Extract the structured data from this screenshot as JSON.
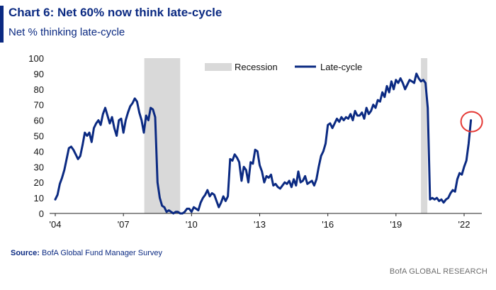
{
  "header": {
    "title": "Chart 6: Net 60% now think late-cycle",
    "subtitle": "Net % thinking late-cycle"
  },
  "footer": {
    "source_label": "Source:",
    "source_text": " BofA Global Fund Manager Survey",
    "brand": "BofA GLOBAL RESEARCH"
  },
  "colors": {
    "line": "#0b2a82",
    "recession": "#d9d9d9",
    "highlight_circle": "#e53935"
  },
  "chart_data": {
    "type": "line",
    "title": "Chart 6: Net 60% now think late-cycle",
    "subtitle": "Net % thinking late-cycle",
    "ylim": [
      0,
      100
    ],
    "yticks": [
      0,
      10,
      20,
      30,
      40,
      50,
      60,
      70,
      80,
      90,
      100
    ],
    "xlim": [
      2004,
      2023.2
    ],
    "xticks": [
      {
        "value": 2004,
        "label": "'04"
      },
      {
        "value": 2007,
        "label": "'07"
      },
      {
        "value": 2010,
        "label": "'10"
      },
      {
        "value": 2013,
        "label": "'13"
      },
      {
        "value": 2016,
        "label": "'16"
      },
      {
        "value": 2019,
        "label": "'19"
      },
      {
        "value": 2022,
        "label": "'22"
      }
    ],
    "legend": {
      "position": "top",
      "recession_label": "Recession",
      "line_label": "Late-cycle"
    },
    "recessions": [
      {
        "start": 2007.92,
        "end": 2009.5
      },
      {
        "start": 2020.1,
        "end": 2020.38
      }
    ],
    "annotation": {
      "type": "circle",
      "x": 2022.3,
      "y": 60
    },
    "series": [
      {
        "name": "Late-cycle",
        "x": [
          2004.0,
          2004.1,
          2004.2,
          2004.3,
          2004.4,
          2004.5,
          2004.6,
          2004.7,
          2004.8,
          2004.9,
          2005.0,
          2005.1,
          2005.2,
          2005.3,
          2005.4,
          2005.5,
          2005.6,
          2005.7,
          2005.8,
          2005.9,
          2006.0,
          2006.1,
          2006.2,
          2006.3,
          2006.4,
          2006.5,
          2006.6,
          2006.7,
          2006.8,
          2006.9,
          2007.0,
          2007.1,
          2007.2,
          2007.3,
          2007.4,
          2007.5,
          2007.6,
          2007.7,
          2007.8,
          2007.9,
          2008.0,
          2008.1,
          2008.2,
          2008.3,
          2008.4,
          2008.5,
          2008.6,
          2008.7,
          2008.8,
          2008.9,
          2009.0,
          2009.1,
          2009.2,
          2009.3,
          2009.4,
          2009.5,
          2009.6,
          2009.7,
          2009.8,
          2009.9,
          2010.0,
          2010.1,
          2010.2,
          2010.3,
          2010.4,
          2010.5,
          2010.6,
          2010.7,
          2010.8,
          2010.9,
          2011.0,
          2011.1,
          2011.2,
          2011.3,
          2011.4,
          2011.5,
          2011.6,
          2011.7,
          2011.8,
          2011.9,
          2012.0,
          2012.1,
          2012.2,
          2012.3,
          2012.4,
          2012.5,
          2012.6,
          2012.7,
          2012.8,
          2012.9,
          2013.0,
          2013.1,
          2013.2,
          2013.3,
          2013.4,
          2013.5,
          2013.6,
          2013.7,
          2013.8,
          2013.9,
          2014.0,
          2014.1,
          2014.2,
          2014.3,
          2014.4,
          2014.5,
          2014.6,
          2014.7,
          2014.8,
          2014.9,
          2015.0,
          2015.1,
          2015.2,
          2015.3,
          2015.4,
          2015.5,
          2015.6,
          2015.7,
          2015.8,
          2015.9,
          2016.0,
          2016.1,
          2016.2,
          2016.3,
          2016.4,
          2016.5,
          2016.6,
          2016.7,
          2016.8,
          2016.9,
          2017.0,
          2017.1,
          2017.2,
          2017.3,
          2017.4,
          2017.5,
          2017.6,
          2017.7,
          2017.8,
          2017.9,
          2018.0,
          2018.1,
          2018.2,
          2018.3,
          2018.4,
          2018.5,
          2018.6,
          2018.7,
          2018.8,
          2018.9,
          2019.0,
          2019.1,
          2019.2,
          2019.3,
          2019.4,
          2019.5,
          2019.6,
          2019.7,
          2019.8,
          2019.9,
          2020.0,
          2020.1,
          2020.2,
          2020.3,
          2020.4,
          2020.5,
          2020.6,
          2020.7,
          2020.8,
          2020.9,
          2021.0,
          2021.1,
          2021.2,
          2021.3,
          2021.4,
          2021.5,
          2021.6,
          2021.7,
          2021.8,
          2021.9,
          2022.0,
          2022.1,
          2022.2,
          2022.3
        ],
        "values": [
          9,
          12,
          19,
          23,
          28,
          35,
          42,
          43,
          41,
          38,
          35,
          37,
          44,
          52,
          50,
          52,
          46,
          55,
          58,
          60,
          57,
          64,
          68,
          63,
          58,
          62,
          55,
          50,
          60,
          61,
          52,
          60,
          65,
          69,
          71,
          74,
          72,
          65,
          60,
          52,
          63,
          60,
          68,
          67,
          62,
          20,
          10,
          5,
          4,
          1,
          2,
          1,
          0,
          1,
          1,
          0,
          0,
          1,
          3,
          3,
          1,
          4,
          3,
          2,
          7,
          10,
          12,
          15,
          11,
          13,
          12,
          8,
          4,
          7,
          11,
          8,
          11,
          35,
          34,
          38,
          36,
          33,
          21,
          30,
          28,
          20,
          33,
          32,
          41,
          40,
          31,
          27,
          20,
          24,
          23,
          25,
          18,
          19,
          17,
          16,
          18,
          20,
          19,
          21,
          17,
          22,
          18,
          27,
          20,
          21,
          24,
          19,
          20,
          21,
          18,
          22,
          30,
          37,
          40,
          45,
          57,
          58,
          55,
          58,
          61,
          59,
          62,
          60,
          62,
          61,
          64,
          60,
          66,
          63,
          63,
          65,
          61,
          68,
          64,
          66,
          70,
          68,
          73,
          72,
          78,
          75,
          82,
          78,
          85,
          80,
          86,
          84,
          87,
          84,
          80,
          83,
          86,
          85,
          84,
          90,
          87,
          85,
          86,
          84,
          68,
          9,
          10,
          9,
          10,
          8,
          9,
          7,
          9,
          10,
          13,
          15,
          14,
          22,
          26,
          25,
          30,
          34,
          45,
          60
        ]
      }
    ]
  }
}
